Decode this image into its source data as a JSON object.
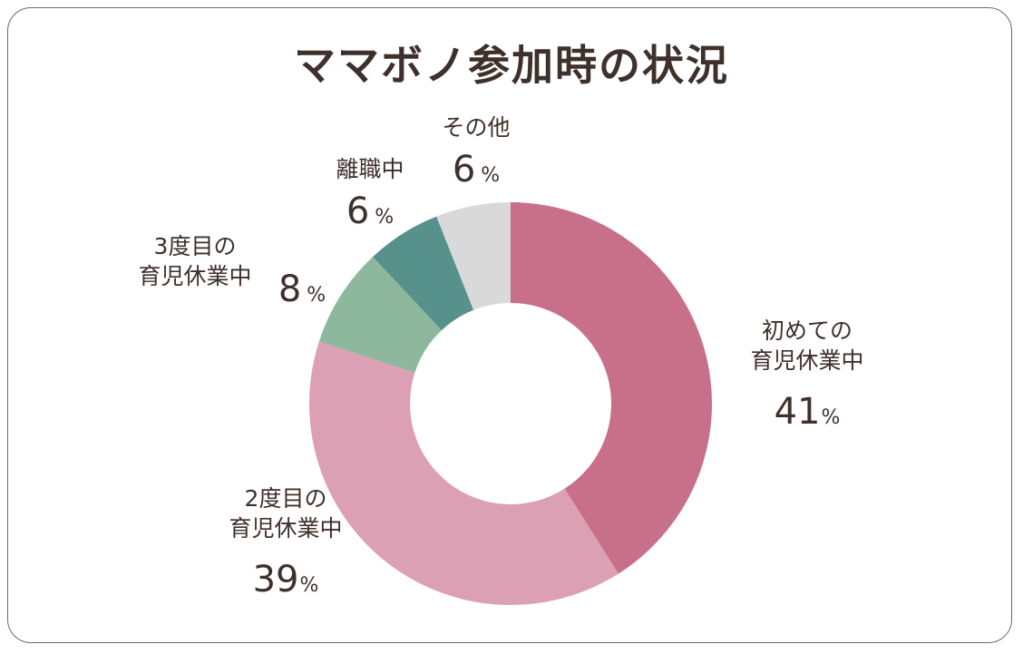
{
  "chart_data": {
    "type": "pie",
    "style": "donut",
    "title": "ママボノ参加時の状況",
    "slices": [
      {
        "label": "初めての育児休業中",
        "label_lines": [
          "初めての",
          "育児休業中"
        ],
        "value": 41,
        "color": "#c86f8a"
      },
      {
        "label": "2度目の育児休業中",
        "label_lines": [
          "2度目の",
          "育児休業中"
        ],
        "value": 39,
        "color": "#dba0b3"
      },
      {
        "label": "3度目の育児休業中",
        "label_lines": [
          "3度目の",
          "育児休業中"
        ],
        "value": 8,
        "color": "#8db89e"
      },
      {
        "label": "離職中",
        "label_lines": [
          "離職中"
        ],
        "value": 6,
        "color": "#56918c"
      },
      {
        "label": "その他",
        "label_lines": [
          "その他"
        ],
        "value": 6,
        "color": "#d9d9d9"
      }
    ],
    "percent_symbol": "%"
  }
}
